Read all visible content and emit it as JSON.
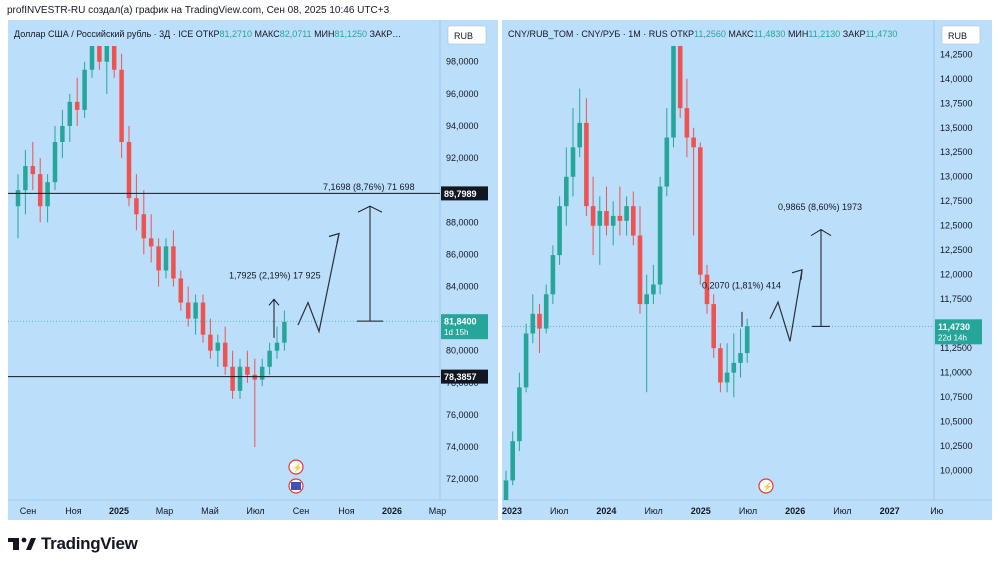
{
  "credit": "profINVESTR-RU создал(а) график на TradingView.com, Сен 08, 2025 10:46 UTC+3",
  "footer": {
    "logo_text": "TradingView"
  },
  "chart_data": [
    {
      "type": "candlestick",
      "title": "Доллар США / Российский рубль · 3Д · ICE",
      "ohlc_label": {
        "o_key": "ОТКР",
        "o": "81,2710",
        "h_key": "МАКС",
        "h": "82,0711",
        "l_key": "МИН",
        "l": "81,1250",
        "c_key": "ЗАКР…"
      },
      "currency": "RUB",
      "ylim": [
        70.7,
        100.6
      ],
      "y_ticks": [
        "72,0000",
        "74,0000",
        "76,0000",
        "78,0000",
        "80,0000",
        "82,0000",
        "84,0000",
        "86,0000",
        "88,0000",
        "90,0000",
        "92,0000",
        "94,0000",
        "96,0000",
        "98,0000"
      ],
      "x_ticks": [
        "Сен",
        "Ноя",
        "2025",
        "Мар",
        "Май",
        "Июл",
        "Сен",
        "Ноя",
        "2026",
        "Мар"
      ],
      "hlines": [
        {
          "value": 89.7989,
          "label": "89,7989"
        },
        {
          "value": 78.3857,
          "label": "78,3857"
        }
      ],
      "last_price": {
        "value": 81.84,
        "label": "81,8400",
        "countdown": "1d 15h"
      },
      "annotations": [
        "7,1698 (8,76%) 71 698",
        "1,7925 (2,19%) 17 925"
      ],
      "series": [
        {
          "o": 89,
          "h": 91,
          "l": 87,
          "c": 90
        },
        {
          "o": 90,
          "h": 92.5,
          "l": 88.5,
          "c": 91.5
        },
        {
          "o": 91.5,
          "h": 93,
          "l": 90,
          "c": 91
        },
        {
          "o": 91,
          "h": 92,
          "l": 88,
          "c": 89
        },
        {
          "o": 89,
          "h": 91,
          "l": 88,
          "c": 90.5
        },
        {
          "o": 90.5,
          "h": 94,
          "l": 90,
          "c": 93
        },
        {
          "o": 93,
          "h": 95,
          "l": 92,
          "c": 94
        },
        {
          "o": 94,
          "h": 96,
          "l": 93,
          "c": 95.5
        },
        {
          "o": 95.5,
          "h": 97,
          "l": 94,
          "c": 95
        },
        {
          "o": 95,
          "h": 98,
          "l": 94.5,
          "c": 97.5
        },
        {
          "o": 97.5,
          "h": 100,
          "l": 97,
          "c": 99.5
        },
        {
          "o": 99.5,
          "h": 100.6,
          "l": 97.5,
          "c": 98
        },
        {
          "o": 98,
          "h": 100,
          "l": 96,
          "c": 99
        },
        {
          "o": 99,
          "h": 100.5,
          "l": 97,
          "c": 97.5
        },
        {
          "o": 97.5,
          "h": 98.5,
          "l": 92,
          "c": 93
        },
        {
          "o": 93,
          "h": 94,
          "l": 89,
          "c": 89.5
        },
        {
          "o": 89.5,
          "h": 91,
          "l": 87.5,
          "c": 88.5
        },
        {
          "o": 88.5,
          "h": 90,
          "l": 86,
          "c": 87
        },
        {
          "o": 87,
          "h": 88.5,
          "l": 85.5,
          "c": 86.5
        },
        {
          "o": 86.5,
          "h": 87,
          "l": 84,
          "c": 85
        },
        {
          "o": 85,
          "h": 87,
          "l": 84.5,
          "c": 86.5
        },
        {
          "o": 86.5,
          "h": 87.5,
          "l": 84,
          "c": 84.5
        },
        {
          "o": 84.5,
          "h": 85,
          "l": 82.5,
          "c": 83
        },
        {
          "o": 83,
          "h": 84,
          "l": 81.5,
          "c": 82
        },
        {
          "o": 82,
          "h": 83.5,
          "l": 81,
          "c": 83
        },
        {
          "o": 83,
          "h": 83.5,
          "l": 80.5,
          "c": 81
        },
        {
          "o": 81,
          "h": 82,
          "l": 79.5,
          "c": 80
        },
        {
          "o": 80,
          "h": 81,
          "l": 79,
          "c": 80.5
        },
        {
          "o": 80.5,
          "h": 81.5,
          "l": 78.5,
          "c": 79
        },
        {
          "o": 79,
          "h": 80,
          "l": 77,
          "c": 77.5
        },
        {
          "o": 77.5,
          "h": 79.5,
          "l": 77,
          "c": 79
        },
        {
          "o": 79,
          "h": 80,
          "l": 78,
          "c": 78.5
        },
        {
          "o": 78.5,
          "h": 79.5,
          "l": 74,
          "c": 78.2
        },
        {
          "o": 78.2,
          "h": 79.5,
          "l": 77.8,
          "c": 79
        },
        {
          "o": 79,
          "h": 80.5,
          "l": 78.5,
          "c": 80
        },
        {
          "o": 80,
          "h": 81.5,
          "l": 79.5,
          "c": 80.5
        },
        {
          "o": 80.5,
          "h": 82.5,
          "l": 80,
          "c": 81.8
        }
      ],
      "projection": [
        [
          82.6,
          87.2
        ],
        [
          81.2,
          83.0,
          81.2,
          87.2
        ]
      ]
    },
    {
      "type": "candlestick",
      "title": "CNY/RUB_TOM · CNY/РУБ · 1М · RUS",
      "ohlc_label": {
        "o_key": "ОТКР",
        "o": "11,2560",
        "h_key": "МАКС",
        "h": "11,4830",
        "l_key": "МИН",
        "l": "11,2130",
        "c_key": "ЗАКР",
        "c": "11,4730"
      },
      "currency": "RUB",
      "ylim": [
        9.7,
        14.6
      ],
      "y_ticks": [
        "10,0000",
        "10,2500",
        "10,5000",
        "10,7500",
        "11,0000",
        "11,2500",
        "11,5000",
        "11,7500",
        "12,0000",
        "12,2500",
        "12,5000",
        "12,7500",
        "13,0000",
        "13,2500",
        "13,5000",
        "13,7500",
        "14,0000",
        "14,2500"
      ],
      "x_ticks": [
        "2023",
        "Июл",
        "2024",
        "Июл",
        "2025",
        "Июл",
        "2026",
        "Июл",
        "2027",
        "Ию"
      ],
      "last_price": {
        "value": 11.473,
        "label": "11,4730",
        "countdown": "22d 14h"
      },
      "annotations": [
        "0,9865 (8,60%) 1973",
        "0,2070 (1,81%) 414"
      ],
      "series": [
        {
          "o": 9.7,
          "h": 10,
          "l": 9.6,
          "c": 9.9
        },
        {
          "o": 9.9,
          "h": 10.4,
          "l": 9.85,
          "c": 10.3
        },
        {
          "o": 10.3,
          "h": 11,
          "l": 10.2,
          "c": 10.85
        },
        {
          "o": 10.85,
          "h": 11.5,
          "l": 10.8,
          "c": 11.4
        },
        {
          "o": 11.4,
          "h": 11.8,
          "l": 11.3,
          "c": 11.6
        },
        {
          "o": 11.6,
          "h": 11.7,
          "l": 11.2,
          "c": 11.45
        },
        {
          "o": 11.45,
          "h": 11.9,
          "l": 11.4,
          "c": 11.8
        },
        {
          "o": 11.8,
          "h": 12.3,
          "l": 11.7,
          "c": 12.2
        },
        {
          "o": 12.2,
          "h": 12.8,
          "l": 12.1,
          "c": 12.7
        },
        {
          "o": 12.7,
          "h": 13.3,
          "l": 12.5,
          "c": 13
        },
        {
          "o": 13,
          "h": 13.7,
          "l": 12.8,
          "c": 13.3
        },
        {
          "o": 13.3,
          "h": 13.9,
          "l": 13.2,
          "c": 13.55
        },
        {
          "o": 13.55,
          "h": 13.8,
          "l": 12.6,
          "c": 12.7
        },
        {
          "o": 12.7,
          "h": 13.0,
          "l": 12.2,
          "c": 12.5
        },
        {
          "o": 12.5,
          "h": 12.8,
          "l": 12.1,
          "c": 12.65
        },
        {
          "o": 12.65,
          "h": 12.9,
          "l": 12.4,
          "c": 12.5
        },
        {
          "o": 12.5,
          "h": 12.75,
          "l": 12.3,
          "c": 12.6
        },
        {
          "o": 12.6,
          "h": 12.9,
          "l": 12.4,
          "c": 12.55
        },
        {
          "o": 12.55,
          "h": 12.8,
          "l": 12.4,
          "c": 12.7
        },
        {
          "o": 12.7,
          "h": 12.85,
          "l": 12.3,
          "c": 12.4
        },
        {
          "o": 12.4,
          "h": 12.7,
          "l": 11.6,
          "c": 11.7
        },
        {
          "o": 11.7,
          "h": 12.0,
          "l": 10.8,
          "c": 11.8
        },
        {
          "o": 11.8,
          "h": 12.1,
          "l": 11.7,
          "c": 11.9
        },
        {
          "o": 11.9,
          "h": 13.0,
          "l": 11.8,
          "c": 12.9
        },
        {
          "o": 12.9,
          "h": 13.7,
          "l": 12.8,
          "c": 13.4
        },
        {
          "o": 13.4,
          "h": 14.7,
          "l": 13.3,
          "c": 14.6
        },
        {
          "o": 14.6,
          "h": 14.7,
          "l": 13.6,
          "c": 13.7
        },
        {
          "o": 13.7,
          "h": 14.0,
          "l": 13.2,
          "c": 13.4
        },
        {
          "o": 13.4,
          "h": 13.5,
          "l": 12.4,
          "c": 13.3
        },
        {
          "o": 13.3,
          "h": 13.35,
          "l": 11.9,
          "c": 12.0
        },
        {
          "o": 12.0,
          "h": 12.1,
          "l": 11.6,
          "c": 11.7
        },
        {
          "o": 11.7,
          "h": 11.8,
          "l": 11.15,
          "c": 11.25
        },
        {
          "o": 11.25,
          "h": 11.3,
          "l": 10.8,
          "c": 10.9
        },
        {
          "o": 10.9,
          "h": 11.3,
          "l": 10.8,
          "c": 11.0
        },
        {
          "o": 11.0,
          "h": 11.4,
          "l": 10.75,
          "c": 11.1
        },
        {
          "o": 11.1,
          "h": 11.45,
          "l": 10.95,
          "c": 11.2
        },
        {
          "o": 11.2,
          "h": 11.55,
          "l": 11.1,
          "c": 11.473
        }
      ],
      "projection": [
        [
          11.473,
          11.84
        ],
        [
          11.65,
          11.28,
          11.95,
          11.2,
          12.2
        ]
      ]
    }
  ]
}
